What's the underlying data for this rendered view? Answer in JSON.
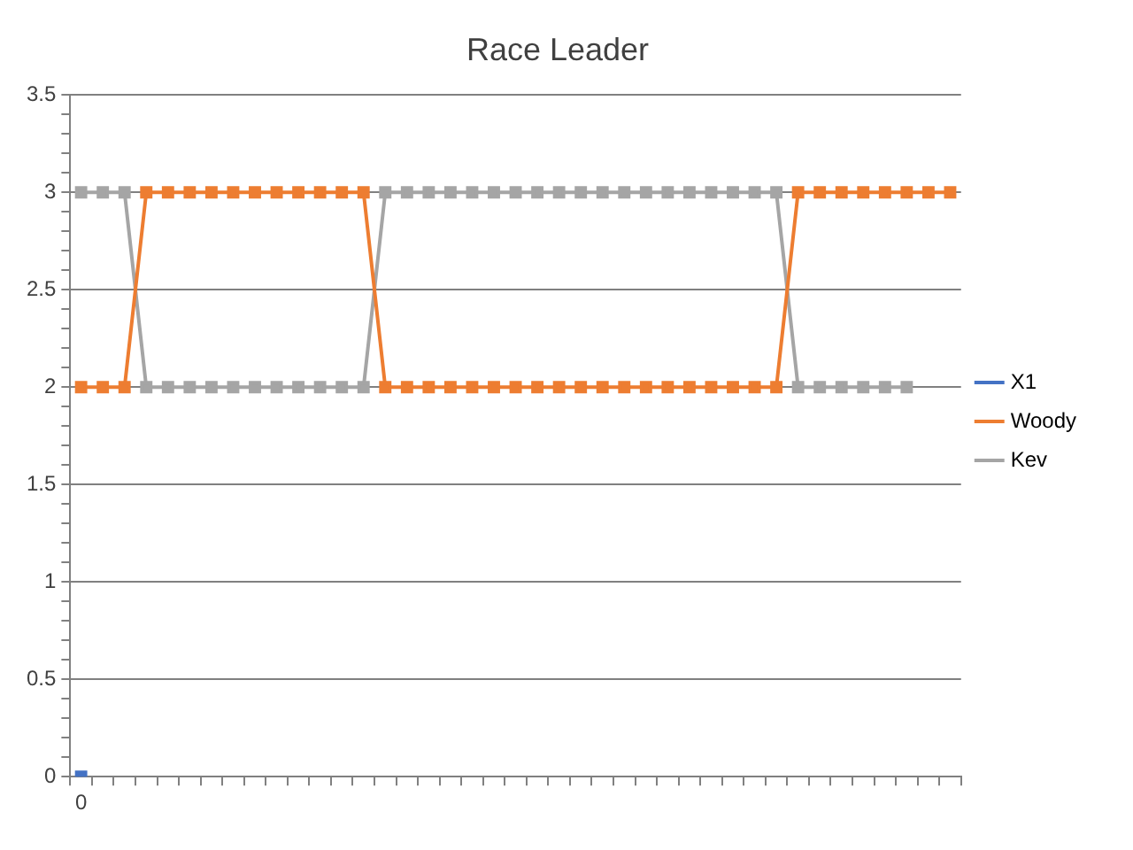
{
  "chart_data": {
    "type": "line",
    "title": "Race Leader",
    "categories": [
      "0",
      null,
      null,
      null,
      null,
      null,
      null,
      null,
      null,
      null,
      null,
      null,
      null,
      null,
      null,
      null,
      null,
      null,
      null,
      null,
      null,
      null,
      null,
      null,
      null,
      null,
      null,
      null,
      null,
      null,
      null,
      null,
      null,
      null,
      null,
      null,
      null,
      null,
      null,
      null,
      null
    ],
    "series": [
      {
        "name": "X1",
        "color": "#4472c4",
        "values": [
          0,
          null,
          null,
          null,
          null,
          null,
          null,
          null,
          null,
          null,
          null,
          null,
          null,
          null,
          null,
          null,
          null,
          null,
          null,
          null,
          null,
          null,
          null,
          null,
          null,
          null,
          null,
          null,
          null,
          null,
          null,
          null,
          null,
          null,
          null,
          null,
          null,
          null,
          null,
          null,
          null
        ]
      },
      {
        "name": "Woody",
        "color": "#ed7d31",
        "values": [
          2,
          2,
          2,
          3,
          3,
          3,
          3,
          3,
          3,
          3,
          3,
          3,
          3,
          3,
          2,
          2,
          2,
          2,
          2,
          2,
          2,
          2,
          2,
          2,
          2,
          2,
          2,
          2,
          2,
          2,
          2,
          2,
          2,
          3,
          3,
          3,
          3,
          3,
          3,
          3,
          3
        ]
      },
      {
        "name": "Kev",
        "color": "#a5a5a5",
        "values": [
          3,
          3,
          3,
          2,
          2,
          2,
          2,
          2,
          2,
          2,
          2,
          2,
          2,
          2,
          3,
          3,
          3,
          3,
          3,
          3,
          3,
          3,
          3,
          3,
          3,
          3,
          3,
          3,
          3,
          3,
          3,
          3,
          3,
          2,
          2,
          2,
          2,
          2,
          2,
          null,
          null
        ]
      }
    ],
    "ylim": [
      0,
      3.5
    ],
    "yticks": [
      0,
      {
        "value": 0.1,
        "label": null
      },
      {
        "value": 0.2,
        "label": null
      },
      {
        "value": 0.3,
        "label": null
      },
      {
        "value": 0.4,
        "label": null
      },
      0.5,
      {
        "value": 0.6,
        "label": null
      },
      {
        "value": 0.7,
        "label": null
      },
      {
        "value": 0.8,
        "label": null
      },
      {
        "value": 0.9,
        "label": null
      },
      1,
      {
        "value": 1.1,
        "label": null
      },
      {
        "value": 1.2,
        "label": null
      },
      {
        "value": 1.3,
        "label": null
      },
      {
        "value": 1.4,
        "label": null
      },
      1.5,
      {
        "value": 1.6,
        "label": null
      },
      {
        "value": 1.7,
        "label": null
      },
      {
        "value": 1.8,
        "label": null
      },
      {
        "value": 1.9,
        "label": null
      },
      2,
      {
        "value": 2.1,
        "label": null
      },
      {
        "value": 2.2,
        "label": null
      },
      {
        "value": 2.3,
        "label": null
      },
      {
        "value": 2.4,
        "label": null
      },
      2.5,
      {
        "value": 2.6,
        "label": null
      },
      {
        "value": 2.7,
        "label": null
      },
      {
        "value": 2.8,
        "label": null
      },
      {
        "value": 2.9,
        "label": null
      },
      3,
      {
        "value": 3.1,
        "label": null
      },
      {
        "value": 3.2,
        "label": null
      },
      {
        "value": 3.3,
        "label": null
      },
      {
        "value": 3.4,
        "label": null
      },
      3.5
    ],
    "grid": "y",
    "legend": "right",
    "marker": "square",
    "line_style": "solid"
  }
}
